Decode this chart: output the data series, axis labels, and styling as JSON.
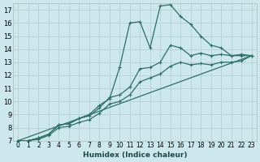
{
  "xlabel": "Humidex (Indice chaleur)",
  "bg_color": "#cde8ec",
  "grid_color": "#b8d4d8",
  "line_color": "#2d6e65",
  "xlim": [
    -0.5,
    23.5
  ],
  "ylim": [
    7,
    17.5
  ],
  "xticks": [
    0,
    1,
    2,
    3,
    4,
    5,
    6,
    7,
    8,
    9,
    10,
    11,
    12,
    13,
    14,
    15,
    16,
    17,
    18,
    19,
    20,
    21,
    22,
    23
  ],
  "yticks": [
    7,
    8,
    9,
    10,
    11,
    12,
    13,
    14,
    15,
    16,
    17
  ],
  "line1_y": [
    7.0,
    7.0,
    7.2,
    7.5,
    8.2,
    8.3,
    8.7,
    9.0,
    9.7,
    10.2,
    12.6,
    16.0,
    16.1,
    14.1,
    17.3,
    17.4,
    16.5,
    15.9,
    15.0,
    14.3,
    14.1,
    13.5,
    13.6,
    13.5
  ],
  "line2_y": [
    7.0,
    7.0,
    7.2,
    7.5,
    8.2,
    8.3,
    8.7,
    8.9,
    9.5,
    10.3,
    10.5,
    11.1,
    12.5,
    12.6,
    13.0,
    14.3,
    14.1,
    13.5,
    13.7,
    13.5,
    13.6,
    13.5,
    13.5,
    13.5
  ],
  "line3_y": [
    7.0,
    7.0,
    7.1,
    7.4,
    8.0,
    8.1,
    8.4,
    8.6,
    9.1,
    9.8,
    10.0,
    10.5,
    11.5,
    11.8,
    12.1,
    12.7,
    13.0,
    12.8,
    12.9,
    12.8,
    13.0,
    13.0,
    13.1,
    13.5
  ],
  "line4_x": [
    0,
    23
  ],
  "line4_y": [
    7.0,
    13.5
  ],
  "xlabel_fontsize": 6.5,
  "tick_fontsize": 5.5,
  "ytick_fontsize": 6.0
}
